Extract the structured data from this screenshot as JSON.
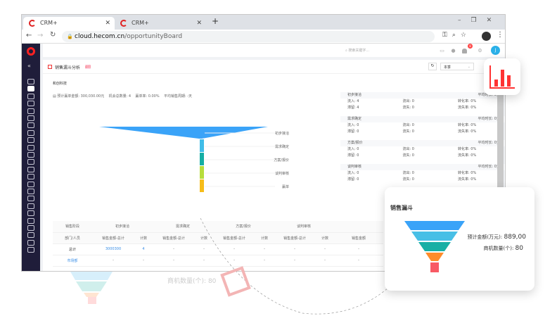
{
  "browser": {
    "tabs": [
      {
        "label": "CRM+"
      },
      {
        "label": "CRM+"
      }
    ],
    "url_host": "cloud.hecom.cn",
    "url_path": "/opportunityBoard",
    "new_tab": "+"
  },
  "topbar": {
    "search_placeholder": "搜索关键字...",
    "notification_count": "8",
    "avatar_initial": "J"
  },
  "panel": {
    "title": "销售漏斗分析",
    "badge": "返回",
    "period": "本季",
    "company": "和创科技",
    "stats": {
      "amount_label": "预计赢单金额:",
      "amount": "300,030.00元",
      "count_label": "机会总数量:",
      "count": "4",
      "win_label": "赢单率:",
      "win": "0.00%",
      "cycle_label": "平均销售周期:",
      "cycle": "-天"
    }
  },
  "funnel": {
    "stages": [
      "初步接洽",
      "需求确定",
      "方案/报价",
      "谈判审核",
      "赢单"
    ],
    "colors": [
      "#3aa3f8",
      "#40bde8",
      "#14aea4",
      "#b7dd3c",
      "#f6bd1a"
    ],
    "values": [
      4,
      0,
      0,
      0,
      0
    ]
  },
  "stage_list": [
    {
      "name": "初步接洽",
      "avg": "平均时长: 0天",
      "in": "流入: 4",
      "out": "流出: 0",
      "conv": "转化率: 0%",
      "stay": "滞留: 4",
      "lost": "流失: 0",
      "lost_rate": "流失率: 0%"
    },
    {
      "name": "需求确定",
      "avg": "平均时长: 0天",
      "in": "流入: 0",
      "out": "流出: 0",
      "conv": "转化率: 0%",
      "stay": "滞留: 0",
      "lost": "流失: 0",
      "lost_rate": "流失率: 0%"
    },
    {
      "name": "方案/报价",
      "avg": "平均时长: 0天",
      "in": "流入: 0",
      "out": "流出: 0",
      "conv": "转化率: 0%",
      "stay": "滞留: 0",
      "lost": "流失: 0",
      "lost_rate": "流失率: 0%"
    },
    {
      "name": "谈判审核",
      "avg": "平均时长: 0天",
      "in": "流入: 0",
      "out": "流出: 0",
      "conv": "转化率: 0%",
      "stay": "滞留: 0",
      "lost": "流失: 0",
      "lost_rate": "流失率: 0%"
    }
  ],
  "table": {
    "corner1": "销售阶段",
    "corner2": "部门/人员",
    "stages": [
      "初步接洽",
      "需求确定",
      "方案/报价",
      "谈判审核"
    ],
    "sub_amount": "销售金额-总计",
    "sub_count": "计数",
    "sub_amount_cut": "销售金额",
    "rows": [
      {
        "name": "总计",
        "cells": [
          "3000300",
          "4",
          "-",
          "-",
          "-",
          "-",
          "-",
          "-",
          "-"
        ]
      },
      {
        "name": "市场部",
        "cells": [
          "-",
          "-",
          "-",
          "-",
          "-",
          "-",
          "-",
          "-",
          "-"
        ]
      }
    ]
  },
  "popup": {
    "title": "销售漏斗",
    "amount_label": "预计金额(万元):",
    "amount": "889,00",
    "count_label": "商机数量(个):",
    "count": "80",
    "colors": [
      "#3aa3f8",
      "#48bfe6",
      "#18afa5",
      "#ff8c2a",
      "#f85a64"
    ]
  }
}
